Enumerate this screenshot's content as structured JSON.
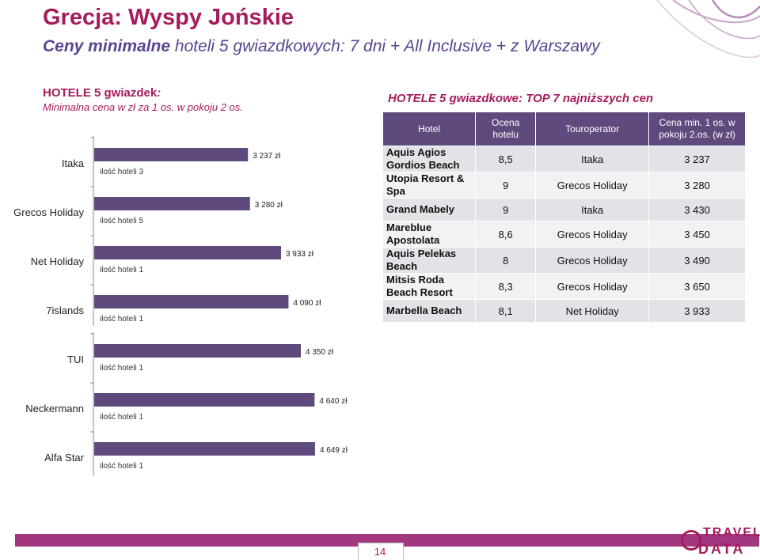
{
  "title": "Grecja: Wyspy Jońskie",
  "subtitle": {
    "lead": "Ceny minimalne",
    "rest": " hoteli 5 gwiazdkowych: 7 dni + All Inclusive + z Warszawy"
  },
  "left_heading": {
    "line1": "HOTELE 5 gwiazdek",
    "line1_suffix": ":",
    "line2": "Minimalna cena w zł za 1 os. w pokoju 2 os."
  },
  "right_heading": "HOTELE 5 gwiazdkowe: TOP 7 najniższych cen",
  "colors": {
    "bar": "#5f4a7e",
    "title": "#a61b5c",
    "subtitle": "#5a4590",
    "footer": "#a2377f"
  },
  "chart_data": {
    "type": "bar",
    "orientation": "horizontal",
    "categories": [
      "Itaka",
      "Grecos Holiday",
      "Net Holiday",
      "7islands",
      "TUI",
      "Neckermann",
      "Alfa Star"
    ],
    "values": [
      3237,
      3280,
      3933,
      4090,
      4350,
      4640,
      4649
    ],
    "value_labels": [
      "3 237 zł",
      "3 280 zł",
      "3 933 zł",
      "4 090 zł",
      "4 350 zł",
      "4 640 zł",
      "4 649 zł"
    ],
    "hotel_count_labels": [
      "ilość hoteli 3",
      "ilość hoteli 5",
      "ilość hoteli 1",
      "ilość hoteli 1",
      "ilość hoteli 1",
      "ilość hoteli 1",
      "ilość hoteli 1"
    ],
    "xlim": [
      0,
      7000
    ],
    "grid": false,
    "legend": "none"
  },
  "table": {
    "headers": [
      "Hotel",
      "Ocena hotelu",
      "Touroperator",
      "Cena min. 1 os. w pokoju 2.os. (w zł)"
    ],
    "rows": [
      {
        "hotel": "Aquis Agios Gordios Beach",
        "rating": "8,5",
        "operator": "Itaka",
        "price": "3 237"
      },
      {
        "hotel": "Utopia Resort & Spa",
        "rating": "9",
        "operator": "Grecos Holiday",
        "price": "3 280"
      },
      {
        "hotel": "Grand Mabely",
        "rating": "9",
        "operator": "Itaka",
        "price": "3 430"
      },
      {
        "hotel": "Mareblue Apostolata",
        "rating": "8,6",
        "operator": "Grecos Holiday",
        "price": "3 450"
      },
      {
        "hotel": "Aquis Pelekas Beach",
        "rating": "8",
        "operator": "Grecos Holiday",
        "price": "3 490"
      },
      {
        "hotel": "Mitsis Roda Beach Resort",
        "rating": "8,3",
        "operator": "Grecos Holiday",
        "price": "3 650"
      },
      {
        "hotel": "Marbella Beach",
        "rating": "8,1",
        "operator": "Net Holiday",
        "price": "3 933"
      }
    ]
  },
  "footer": {
    "page_number": "14",
    "logo_word1": "TRAVEL",
    "logo_word2": "DATA"
  }
}
